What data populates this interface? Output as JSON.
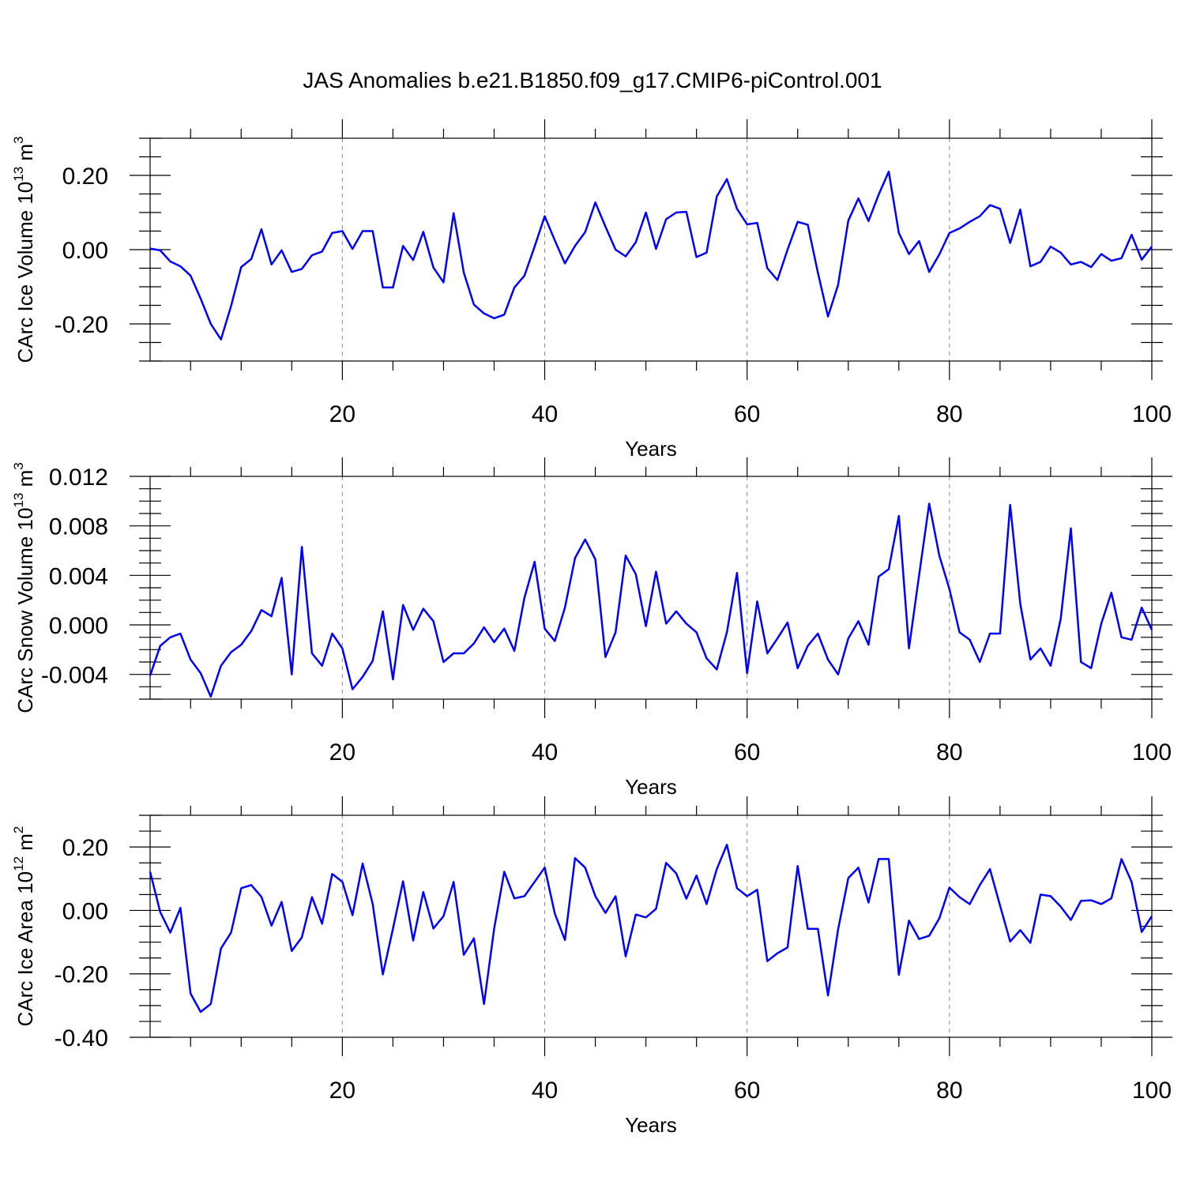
{
  "title": "JAS Anomalies b.e21.B1850.f09_g17.CMIP6-piControl.001",
  "line_color": "#0000ff",
  "chart_data": [
    {
      "type": "line",
      "ylabel": "CArc Ice Volume 10",
      "ylabel_exp": "13",
      "ylabel_unit": " m",
      "ylabel_unit_exp": "3",
      "xlabel": "Years",
      "xlim": [
        1,
        100
      ],
      "ylim": [
        -0.3,
        0.3
      ],
      "xticks": [
        20,
        40,
        60,
        80,
        100
      ],
      "xtick_labels": [
        "20",
        "40",
        "60",
        "80",
        "100"
      ],
      "yticks": [
        -0.2,
        0.0,
        0.2
      ],
      "ytick_labels": [
        "-0.20",
        "0.00",
        "0.20"
      ],
      "yminor": 0.05,
      "grid_x": true,
      "x": [
        1,
        2,
        3,
        4,
        5,
        6,
        7,
        8,
        9,
        10,
        11,
        12,
        13,
        14,
        15,
        16,
        17,
        18,
        19,
        20,
        21,
        22,
        23,
        24,
        25,
        26,
        27,
        28,
        29,
        30,
        31,
        32,
        33,
        34,
        35,
        36,
        37,
        38,
        39,
        40,
        41,
        42,
        43,
        44,
        45,
        46,
        47,
        48,
        49,
        50,
        51,
        52,
        53,
        54,
        55,
        56,
        57,
        58,
        59,
        60,
        61,
        62,
        63,
        64,
        65,
        66,
        67,
        68,
        69,
        70,
        71,
        72,
        73,
        74,
        75,
        76,
        77,
        78,
        79,
        80,
        81,
        82,
        83,
        84,
        85,
        86,
        87,
        88,
        89,
        90,
        91,
        92,
        93,
        94,
        95,
        96,
        97,
        98,
        99,
        100
      ],
      "values": [
        0.003,
        -0.002,
        -0.032,
        -0.045,
        -0.07,
        -0.132,
        -0.2,
        -0.242,
        -0.152,
        -0.047,
        -0.025,
        0.055,
        -0.04,
        -0.002,
        -0.06,
        -0.052,
        -0.015,
        -0.005,
        0.045,
        0.05,
        0.002,
        0.05,
        0.05,
        -0.102,
        -0.102,
        0.01,
        -0.028,
        0.048,
        -0.048,
        -0.088,
        0.098,
        -0.062,
        -0.148,
        -0.172,
        -0.185,
        -0.175,
        -0.102,
        -0.07,
        0.008,
        0.09,
        0.025,
        -0.037,
        0.01,
        0.047,
        0.127,
        0.062,
        0,
        -0.018,
        0.02,
        0.1,
        0.002,
        0.082,
        0.1,
        0.102,
        -0.02,
        -0.008,
        0.143,
        0.19,
        0.11,
        0.068,
        0.072,
        -0.05,
        -0.082,
        0,
        0.075,
        0.067,
        -0.062,
        -0.18,
        -0.095,
        0.078,
        0.138,
        0.077,
        0.148,
        0.21,
        0.045,
        -0.012,
        0.023,
        -0.06,
        -0.013,
        0.045,
        0.057,
        0.075,
        0.09,
        0.12,
        0.11,
        0.018,
        0.108,
        -0.045,
        -0.033,
        0.008,
        -0.008,
        -0.04,
        -0.033,
        -0.047,
        -0.012,
        -0.03,
        -0.023,
        0.04,
        -0.027,
        0.008
      ]
    },
    {
      "type": "line",
      "ylabel": "CArc Snow Volume 10",
      "ylabel_exp": "13",
      "ylabel_unit": " m",
      "ylabel_unit_exp": "3",
      "xlabel": "Years",
      "xlim": [
        1,
        100
      ],
      "ylim": [
        -0.006,
        0.012
      ],
      "xticks": [
        20,
        40,
        60,
        80,
        100
      ],
      "xtick_labels": [
        "20",
        "40",
        "60",
        "80",
        "100"
      ],
      "yticks": [
        -0.004,
        0.0,
        0.004,
        0.008,
        0.012
      ],
      "ytick_labels": [
        "-0.004",
        "0.000",
        "0.004",
        "0.008",
        "0.012"
      ],
      "yminor": 0.001,
      "grid_x": true,
      "x": [
        1,
        2,
        3,
        4,
        5,
        6,
        7,
        8,
        9,
        10,
        11,
        12,
        13,
        14,
        15,
        16,
        17,
        18,
        19,
        20,
        21,
        22,
        23,
        24,
        25,
        26,
        27,
        28,
        29,
        30,
        31,
        32,
        33,
        34,
        35,
        36,
        37,
        38,
        39,
        40,
        41,
        42,
        43,
        44,
        45,
        46,
        47,
        48,
        49,
        50,
        51,
        52,
        53,
        54,
        55,
        56,
        57,
        58,
        59,
        60,
        61,
        62,
        63,
        64,
        65,
        66,
        67,
        68,
        69,
        70,
        71,
        72,
        73,
        74,
        75,
        76,
        77,
        78,
        79,
        80,
        81,
        82,
        83,
        84,
        85,
        86,
        87,
        88,
        89,
        90,
        91,
        92,
        93,
        94,
        95,
        96,
        97,
        98,
        99,
        100
      ],
      "values": [
        -0.0041,
        -0.0017,
        -0.001,
        -0.0007,
        -0.0028,
        -0.0039,
        -0.0058,
        -0.0033,
        -0.0022,
        -0.0016,
        -0.0005,
        0.0012,
        0.0007,
        0.0038,
        -0.004,
        0.0063,
        -0.0023,
        -0.0033,
        -0.0007,
        -0.0019,
        -0.0052,
        -0.0042,
        -0.0029,
        0.0011,
        -0.0044,
        0.0016,
        -0.0004,
        0.0013,
        0.0003,
        -0.003,
        -0.0023,
        -0.0023,
        -0.0015,
        -0.0002,
        -0.0014,
        -0.0003,
        -0.0021,
        0.0022,
        0.0051,
        -0.0003,
        -0.0013,
        0.0014,
        0.0054,
        0.0069,
        0.0053,
        -0.0026,
        -0.0006,
        0.0056,
        0.0041,
        -0.0001,
        0.0043,
        0.0001,
        0.0011,
        0.0001,
        -0.0006,
        -0.0027,
        -0.0036,
        -0.0006,
        0.0042,
        -0.0039,
        0.0019,
        -0.0023,
        -0.0011,
        0.0002,
        -0.0035,
        -0.0017,
        -0.0007,
        -0.0028,
        -0.004,
        -0.0011,
        0.0003,
        -0.0016,
        0.0039,
        0.0045,
        0.0088,
        -0.0019,
        0.004,
        0.0098,
        0.0056,
        0.0029,
        -0.0006,
        -0.0012,
        -0.003,
        -0.0007,
        -0.0007,
        0.0097,
        0.0017,
        -0.0028,
        -0.0019,
        -0.0033,
        0.0005,
        0.0078,
        -0.003,
        -0.0035,
        0.0001,
        0.0026,
        -0.001,
        -0.0012,
        0.0014,
        -0.0004
      ]
    },
    {
      "type": "line",
      "ylabel": "CArc Ice Area 10",
      "ylabel_exp": "12",
      "ylabel_unit": " m",
      "ylabel_unit_exp": "2",
      "xlabel": "Years",
      "xlim": [
        1,
        100
      ],
      "ylim": [
        -0.4,
        0.3
      ],
      "xticks": [
        20,
        40,
        60,
        80,
        100
      ],
      "xtick_labels": [
        "20",
        "40",
        "60",
        "80",
        "100"
      ],
      "yticks": [
        -0.4,
        -0.2,
        0.0,
        0.2
      ],
      "ytick_labels": [
        "-0.40",
        "-0.20",
        "0.00",
        "0.20"
      ],
      "yminor": 0.05,
      "grid_x": true,
      "x": [
        1,
        2,
        3,
        4,
        5,
        6,
        7,
        8,
        9,
        10,
        11,
        12,
        13,
        14,
        15,
        16,
        17,
        18,
        19,
        20,
        21,
        22,
        23,
        24,
        25,
        26,
        27,
        28,
        29,
        30,
        31,
        32,
        33,
        34,
        35,
        36,
        37,
        38,
        39,
        40,
        41,
        42,
        43,
        44,
        45,
        46,
        47,
        48,
        49,
        50,
        51,
        52,
        53,
        54,
        55,
        56,
        57,
        58,
        59,
        60,
        61,
        62,
        63,
        64,
        65,
        66,
        67,
        68,
        69,
        70,
        71,
        72,
        73,
        74,
        75,
        76,
        77,
        78,
        79,
        80,
        81,
        82,
        83,
        84,
        85,
        86,
        87,
        88,
        89,
        90,
        91,
        92,
        93,
        94,
        95,
        96,
        97,
        98,
        99,
        100
      ],
      "values": [
        0.122,
        -0.005,
        -0.07,
        0.008,
        -0.262,
        -0.32,
        -0.295,
        -0.12,
        -0.07,
        0.07,
        0.08,
        0.043,
        -0.048,
        0.027,
        -0.128,
        -0.085,
        0.042,
        -0.042,
        0.115,
        0.09,
        -0.015,
        0.148,
        0.02,
        -0.202,
        -0.058,
        0.092,
        -0.095,
        0.058,
        -0.057,
        -0.018,
        0.09,
        -0.14,
        -0.088,
        -0.295,
        -0.058,
        0.122,
        0.038,
        0.045,
        0.09,
        0.135,
        -0.01,
        -0.093,
        0.165,
        0.135,
        0.045,
        -0.008,
        0.045,
        -0.145,
        -0.013,
        -0.022,
        0.005,
        0.15,
        0.117,
        0.037,
        0.11,
        0.02,
        0.13,
        0.207,
        0.07,
        0.045,
        0.065,
        -0.16,
        -0.135,
        -0.117,
        0.14,
        -0.058,
        -0.058,
        -0.268,
        -0.06,
        0.102,
        0.135,
        0.025,
        0.162,
        0.162,
        -0.203,
        -0.032,
        -0.09,
        -0.08,
        -0.025,
        0.072,
        0.042,
        0.02,
        0.08,
        0.13,
        0.015,
        -0.098,
        -0.062,
        -0.102,
        0.05,
        0.045,
        0.012,
        -0.03,
        0.03,
        0.032,
        0.02,
        0.038,
        0.162,
        0.09,
        -0.068,
        -0.018
      ]
    }
  ]
}
